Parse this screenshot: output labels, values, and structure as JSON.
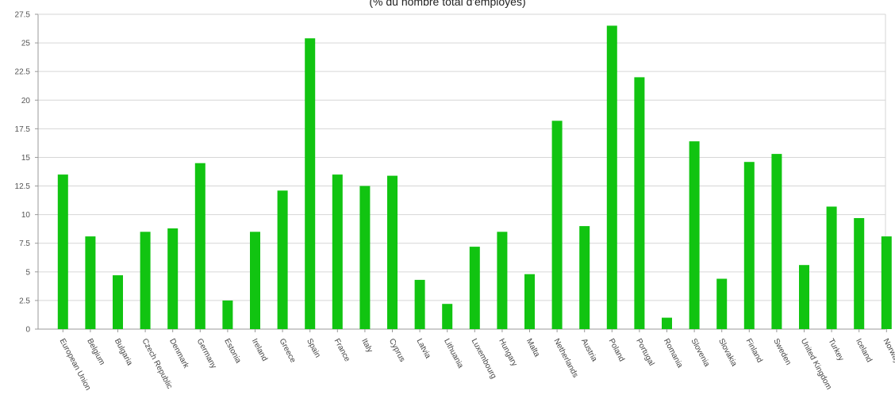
{
  "chart_data": {
    "type": "bar",
    "title": "(% du nombre total d'employés)",
    "xlabel": "",
    "ylabel": "",
    "ylim": [
      0,
      27.5
    ],
    "y_ticks": [
      "0",
      "2.5",
      "5",
      "7.5",
      "10",
      "12.5",
      "15",
      "17.5",
      "20",
      "22.5",
      "25",
      "27.5"
    ],
    "grid": true,
    "bar_color": "#11c411",
    "categories": [
      "European Union",
      "Belgium",
      "Bulgaria",
      "Czech Republic",
      "Denmark",
      "Germany",
      "Estonia",
      "Ireland",
      "Greece",
      "Spain",
      "France",
      "Italy",
      "Cyprus",
      "Latvia",
      "Lithuania",
      "Luxembourg",
      "Hungary",
      "Malta",
      "Netherlands",
      "Austria",
      "Poland",
      "Portugal",
      "Romania",
      "Slovenia",
      "Slovakia",
      "Finland",
      "Sweden",
      "United Kingdom",
      "Turkey",
      "Iceland",
      "Norway"
    ],
    "values": [
      13.5,
      8.1,
      4.7,
      8.5,
      8.8,
      14.5,
      2.5,
      8.5,
      12.1,
      25.4,
      13.5,
      12.5,
      13.4,
      4.3,
      2.2,
      7.2,
      8.5,
      4.8,
      18.2,
      9.0,
      26.5,
      22.0,
      1.0,
      16.4,
      4.4,
      14.6,
      15.3,
      5.6,
      10.7,
      9.7,
      8.1
    ]
  }
}
